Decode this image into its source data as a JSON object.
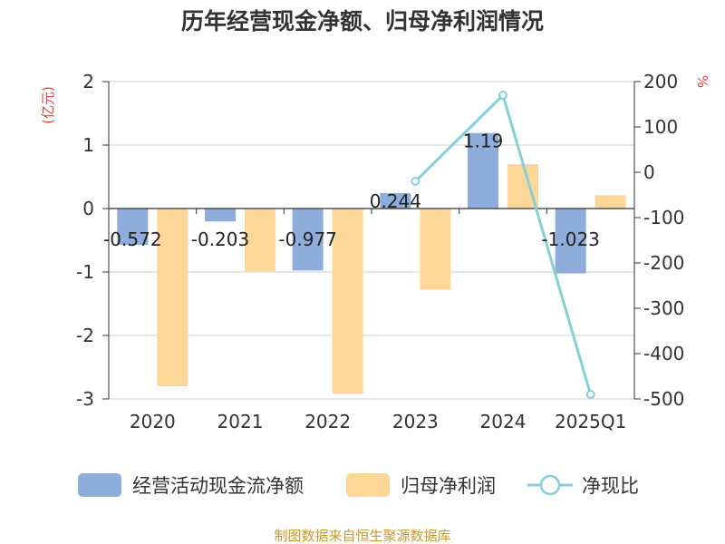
{
  "title": "历年经营现金净额、归母净利润情况",
  "source": "制图数据来自恒生聚源数据库",
  "chart_data": {
    "type": "bar",
    "categories": [
      "2020",
      "2021",
      "2022",
      "2023",
      "2024",
      "2025Q1"
    ],
    "left_axis": {
      "unit": "(亿元)",
      "ylim": [
        -3,
        2
      ],
      "ticks": [
        2,
        1,
        0,
        -1,
        -2,
        -3
      ]
    },
    "right_axis": {
      "unit": "%",
      "ylim": [
        -500,
        200
      ],
      "ticks": [
        200,
        100,
        0,
        -100,
        -200,
        -300,
        -400,
        -500
      ]
    },
    "series": [
      {
        "name": "经营活动现金流净额",
        "kind": "bar",
        "axis": "left",
        "color": "#8eaddb",
        "values": [
          -0.572,
          -0.203,
          -0.977,
          0.244,
          1.19,
          -1.023
        ],
        "labels": [
          "-0.572",
          "-0.203",
          "-0.977",
          "0.244",
          "1.19",
          "-1.023"
        ]
      },
      {
        "name": "归母净利润",
        "kind": "bar",
        "axis": "left",
        "color": "#fdd797",
        "values": [
          -2.8,
          -1.0,
          -2.92,
          -1.28,
          0.7,
          0.21
        ]
      },
      {
        "name": "净现比",
        "kind": "line",
        "axis": "right",
        "color": "#85d0d6",
        "values": [
          null,
          null,
          null,
          -20,
          170,
          -490
        ]
      }
    ],
    "grid": true,
    "legend": "bottom"
  }
}
